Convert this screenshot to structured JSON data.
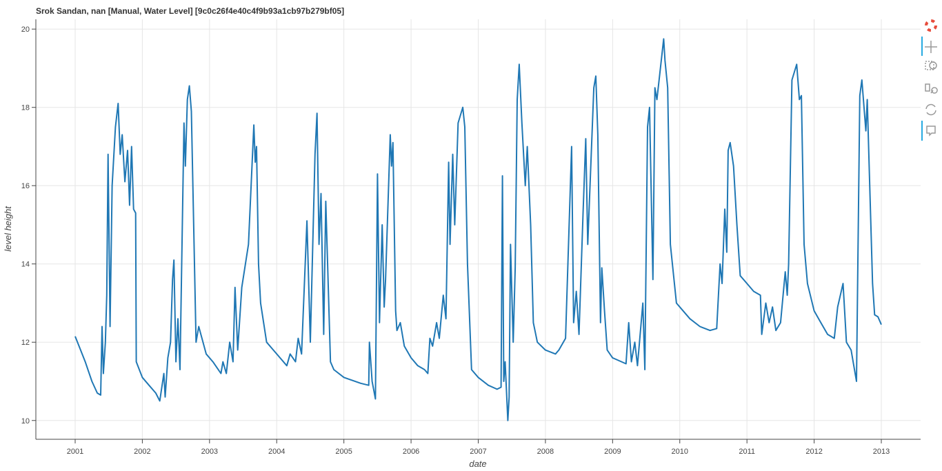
{
  "chart_data": {
    "type": "line",
    "title": "Srok Sandan, nan [Manual, Water Level] [9c0c26f4e40c4f9b93a1cb97b279bf05]",
    "x_label": "date",
    "y_label": "level height",
    "color": "#1f77b4",
    "grid": true,
    "xlim": [
      2000.415,
      2013.585
    ],
    "ylim": [
      9.52,
      20.25
    ],
    "xticks": [
      2001,
      2002,
      2003,
      2004,
      2005,
      2006,
      2007,
      2008,
      2009,
      2010,
      2011,
      2012,
      2013
    ],
    "yticks": [
      10,
      12,
      14,
      16,
      18,
      20
    ],
    "x": [
      2001.0,
      2001.15,
      2001.25,
      2001.33,
      2001.38,
      2001.4,
      2001.42,
      2001.45,
      2001.47,
      2001.49,
      2001.52,
      2001.55,
      2001.6,
      2001.64,
      2001.67,
      2001.7,
      2001.74,
      2001.78,
      2001.81,
      2001.84,
      2001.87,
      2001.9,
      2001.91,
      2002.0,
      2002.1,
      2002.2,
      2002.26,
      2002.32,
      2002.34,
      2002.38,
      2002.42,
      2002.45,
      2002.47,
      2002.5,
      2002.53,
      2002.56,
      2002.62,
      2002.64,
      2002.67,
      2002.7,
      2002.73,
      2002.8,
      2002.84,
      2002.95,
      2003.05,
      2003.17,
      2003.2,
      2003.25,
      2003.3,
      2003.35,
      2003.38,
      2003.42,
      2003.48,
      2003.58,
      2003.66,
      2003.68,
      2003.7,
      2003.73,
      2003.76,
      2003.85,
      2003.95,
      2004.05,
      2004.15,
      2004.2,
      2004.28,
      2004.32,
      2004.37,
      2004.45,
      2004.5,
      2004.57,
      2004.6,
      2004.63,
      2004.66,
      2004.7,
      2004.73,
      2004.8,
      2004.85,
      2005.0,
      2005.25,
      2005.37,
      2005.38,
      2005.42,
      2005.47,
      2005.5,
      2005.53,
      2005.57,
      2005.6,
      2005.62,
      2005.69,
      2005.71,
      2005.73,
      2005.77,
      2005.79,
      2005.84,
      2005.9,
      2006.0,
      2006.1,
      2006.2,
      2006.25,
      2006.28,
      2006.32,
      2006.38,
      2006.42,
      2006.48,
      2006.52,
      2006.56,
      2006.58,
      2006.62,
      2006.65,
      2006.7,
      2006.77,
      2006.8,
      2006.84,
      2006.9,
      2007.0,
      2007.15,
      2007.28,
      2007.34,
      2007.36,
      2007.38,
      2007.4,
      2007.44,
      2007.46,
      2007.48,
      2007.52,
      2007.55,
      2007.58,
      2007.61,
      2007.65,
      2007.7,
      2007.73,
      2007.78,
      2007.82,
      2007.88,
      2008.0,
      2008.15,
      2008.2,
      2008.3,
      2008.39,
      2008.42,
      2008.46,
      2008.5,
      2008.56,
      2008.6,
      2008.63,
      2008.72,
      2008.75,
      2008.78,
      2008.82,
      2008.84,
      2008.88,
      2008.92,
      2009.0,
      2009.2,
      2009.24,
      2009.28,
      2009.33,
      2009.37,
      2009.45,
      2009.48,
      2009.52,
      2009.55,
      2009.6,
      2009.63,
      2009.66,
      2009.76,
      2009.78,
      2009.82,
      2009.86,
      2009.95,
      2010.05,
      2010.15,
      2010.3,
      2010.45,
      2010.55,
      2010.6,
      2010.63,
      2010.67,
      2010.7,
      2010.72,
      2010.75,
      2010.8,
      2010.85,
      2010.9,
      2011.0,
      2011.1,
      2011.2,
      2011.22,
      2011.28,
      2011.33,
      2011.38,
      2011.43,
      2011.5,
      2011.57,
      2011.6,
      2011.62,
      2011.67,
      2011.74,
      2011.78,
      2011.81,
      2011.85,
      2011.9,
      2012.0,
      2012.1,
      2012.2,
      2012.3,
      2012.35,
      2012.43,
      2012.48,
      2012.55,
      2012.63,
      2012.68,
      2012.71,
      2012.77,
      2012.79,
      2012.87,
      2012.9,
      2012.95,
      2013.0
    ],
    "values": [
      12.15,
      11.5,
      11.0,
      10.7,
      10.65,
      12.4,
      11.2,
      12.0,
      13.2,
      16.8,
      12.4,
      16.0,
      17.5,
      18.1,
      16.8,
      17.3,
      16.1,
      16.9,
      15.5,
      17.0,
      15.4,
      15.3,
      11.5,
      11.1,
      10.9,
      10.7,
      10.5,
      11.2,
      10.6,
      11.6,
      12.0,
      13.6,
      14.1,
      11.5,
      12.6,
      11.3,
      17.6,
      16.5,
      18.2,
      18.55,
      17.9,
      12.0,
      12.4,
      11.7,
      11.5,
      11.2,
      11.5,
      11.2,
      12.0,
      11.5,
      13.4,
      11.8,
      13.4,
      14.5,
      17.55,
      16.6,
      17.0,
      14.0,
      13.0,
      12.0,
      11.8,
      11.6,
      11.4,
      11.7,
      11.5,
      12.1,
      11.7,
      15.1,
      12.0,
      16.8,
      17.85,
      14.5,
      15.8,
      12.2,
      15.6,
      11.5,
      11.3,
      11.1,
      10.95,
      10.9,
      12.0,
      11.0,
      10.55,
      16.3,
      12.5,
      15.0,
      12.9,
      13.6,
      17.3,
      16.5,
      17.1,
      12.8,
      12.3,
      12.5,
      11.9,
      11.6,
      11.4,
      11.3,
      11.2,
      12.1,
      11.9,
      12.5,
      12.1,
      13.2,
      12.6,
      16.6,
      14.5,
      16.8,
      15.0,
      17.6,
      18.0,
      17.5,
      14.0,
      11.3,
      11.1,
      10.9,
      10.8,
      10.85,
      16.25,
      11.0,
      11.5,
      10.0,
      10.6,
      14.5,
      12.0,
      13.9,
      18.2,
      19.1,
      17.6,
      16.0,
      17.0,
      15.0,
      12.5,
      12.0,
      11.8,
      11.7,
      11.8,
      12.1,
      17.0,
      12.5,
      13.3,
      12.2,
      15.3,
      17.2,
      14.5,
      18.5,
      18.8,
      17.3,
      12.5,
      13.9,
      12.8,
      11.8,
      11.6,
      11.45,
      12.5,
      11.5,
      12.0,
      11.4,
      13.0,
      11.3,
      17.5,
      18.0,
      13.6,
      18.5,
      18.2,
      19.75,
      19.2,
      18.5,
      14.5,
      13.0,
      12.8,
      12.6,
      12.4,
      12.3,
      12.35,
      14.0,
      13.5,
      15.4,
      14.3,
      16.9,
      17.1,
      16.5,
      15.0,
      13.7,
      13.5,
      13.3,
      13.2,
      12.2,
      13.0,
      12.5,
      12.9,
      12.3,
      12.5,
      13.8,
      13.2,
      14.0,
      18.7,
      19.1,
      18.2,
      18.3,
      14.5,
      13.5,
      12.8,
      12.5,
      12.2,
      12.1,
      12.9,
      13.5,
      12.0,
      11.8,
      11.0,
      18.3,
      18.7,
      17.4,
      18.2,
      13.5,
      12.7,
      12.65,
      12.45
    ]
  }
}
